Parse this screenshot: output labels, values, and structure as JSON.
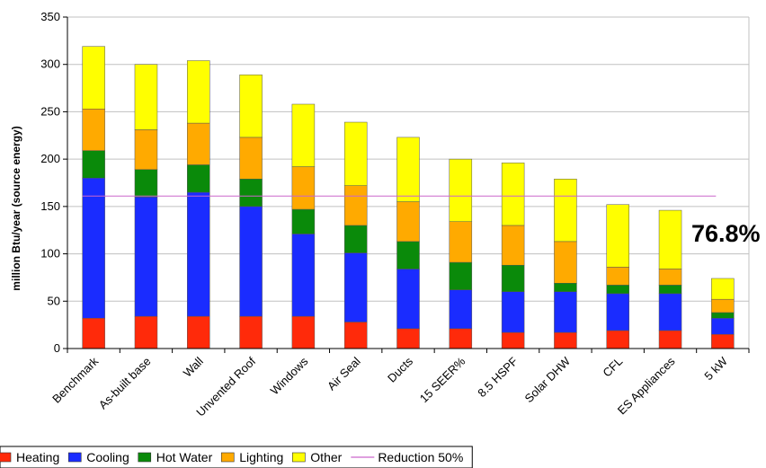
{
  "chart_data": {
    "type": "bar",
    "stacked": true,
    "categories": [
      "Benchmark",
      "As-built base",
      "Wall",
      "Unvented Roof",
      "Windows",
      "Air Seal",
      "Ducts",
      "15 SEER%",
      "8.5 HSPF",
      "Solar DHW",
      "CFL",
      "ES Appliances",
      "5 kW"
    ],
    "series": [
      {
        "name": "Heating",
        "color": "#ff2a0a",
        "values": [
          32,
          34,
          34,
          34,
          34,
          28,
          21,
          21,
          17,
          17,
          19,
          19,
          15
        ]
      },
      {
        "name": "Cooling",
        "color": "#1a2cff",
        "values": [
          148,
          126,
          131,
          116,
          87,
          73,
          63,
          41,
          43,
          43,
          39,
          39,
          17
        ]
      },
      {
        "name": "Hot Water",
        "color": "#0a8a0a",
        "values": [
          29,
          29,
          29,
          29,
          26,
          29,
          29,
          29,
          28,
          9,
          9,
          9,
          6
        ]
      },
      {
        "name": "Lighting",
        "color": "#ffaa00",
        "values": [
          44,
          42,
          44,
          44,
          45,
          42,
          42,
          43,
          42,
          44,
          19,
          17,
          14
        ]
      },
      {
        "name": "Other",
        "color": "#ffff00",
        "values": [
          66,
          69,
          66,
          66,
          66,
          67,
          68,
          66,
          66,
          66,
          66,
          62,
          22
        ]
      }
    ],
    "reference_line": {
      "name": "Reduction 50%",
      "value": 161,
      "color": "#cc66cc"
    },
    "ylabel": "million Btu/year (source energy)",
    "xlabel": "",
    "ylim": [
      0,
      350
    ],
    "yticks": [
      0,
      50,
      100,
      150,
      200,
      250,
      300,
      350
    ],
    "grid": true,
    "legend_position": "bottom",
    "annotation": {
      "text": "76.8%"
    }
  }
}
